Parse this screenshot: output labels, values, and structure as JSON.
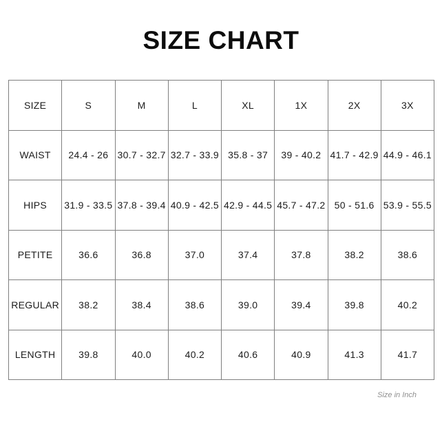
{
  "title": "SIZE CHART",
  "footer_note": "Size in Inch",
  "colors": {
    "background": "#ffffff",
    "border": "#7f7f7f",
    "text": "#1c1c1c",
    "note_text": "#8f8f8f"
  },
  "chart_data": {
    "type": "table",
    "title": "SIZE CHART",
    "unit_note": "Size in Inch",
    "header": [
      "SIZE",
      "S",
      "M",
      "L",
      "XL",
      "1X",
      "2X",
      "3X"
    ],
    "rows": [
      {
        "label": "WAIST",
        "values": [
          "24.4 - 26",
          "30.7 - 32.7",
          "32.7 - 33.9",
          "35.8 - 37",
          "39 - 40.2",
          "41.7 - 42.9",
          "44.9 - 46.1"
        ]
      },
      {
        "label": "HIPS",
        "values": [
          "31.9 - 33.5",
          "37.8 - 39.4",
          "40.9 - 42.5",
          "42.9 - 44.5",
          "45.7 - 47.2",
          "50 - 51.6",
          "53.9 - 55.5"
        ]
      },
      {
        "label": "PETITE",
        "values": [
          "36.6",
          "36.8",
          "37.0",
          "37.4",
          "37.8",
          "38.2",
          "38.6"
        ]
      },
      {
        "label": "REGULAR",
        "values": [
          "38.2",
          "38.4",
          "38.6",
          "39.0",
          "39.4",
          "39.8",
          "40.2"
        ]
      },
      {
        "label": "LENGTH",
        "values": [
          "39.8",
          "40.0",
          "40.2",
          "40.6",
          "40.9",
          "41.3",
          "41.7"
        ]
      }
    ]
  }
}
